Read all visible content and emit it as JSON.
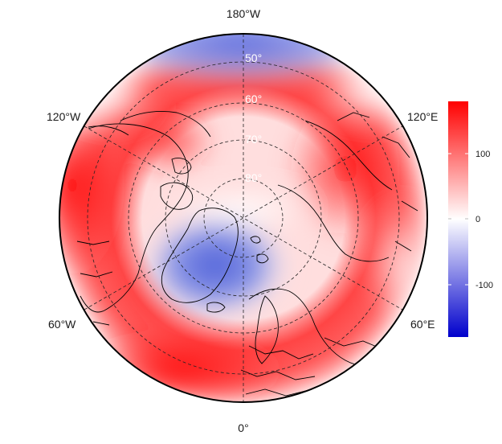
{
  "map": {
    "projection": "north polar stereographic",
    "center": "North Pole",
    "boundary_latitude": 45,
    "graticule": {
      "latitudes": [
        50,
        60,
        70,
        80
      ],
      "longitudes": [
        0,
        60,
        120,
        180,
        -120,
        -60
      ],
      "style": "dashed"
    },
    "longitude_labels": {
      "top": "180°W",
      "bottom": "0°",
      "upper_left": "120°W",
      "upper_right": "120°E",
      "lower_left": "60°W",
      "lower_right": "60°E"
    },
    "latitude_labels": [
      "50°",
      "60°",
      "70°",
      "80°"
    ],
    "field": {
      "description_colors": "diverging blue-white-red",
      "negative_center": "Greenland / Baffin Bay",
      "positive_ring": "mid latitudes around the hemisphere"
    }
  },
  "colorbar": {
    "min": -180,
    "max": 180,
    "ticks": [
      "100",
      "0",
      "-100"
    ],
    "colors": {
      "low": "#0000cc",
      "mid": "#ffffff",
      "high": "#ff0000"
    }
  }
}
